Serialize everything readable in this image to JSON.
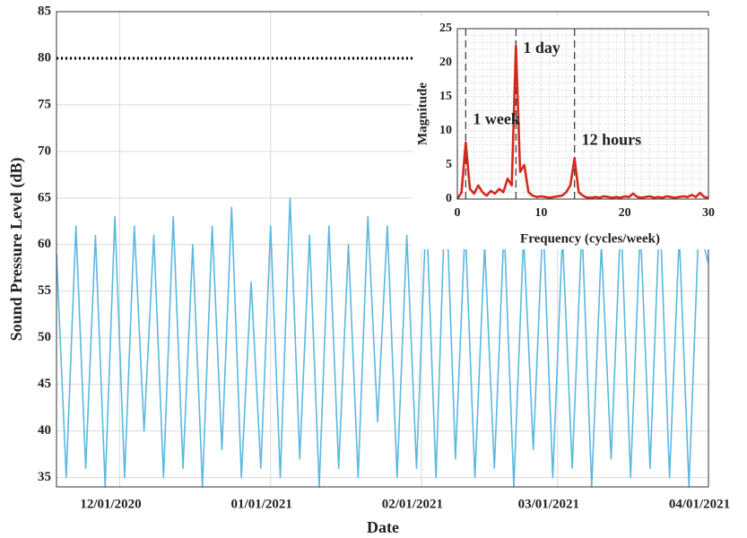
{
  "chart_data": [
    {
      "type": "line",
      "xlabel": "Date",
      "ylabel": "Sound Pressure Level (dB)",
      "x": [
        "2020-11-18",
        "2020-11-20",
        "2020-11-22",
        "2020-11-24",
        "2020-11-26",
        "2020-11-28",
        "2020-11-30",
        "2020-12-02",
        "2020-12-04",
        "2020-12-06",
        "2020-12-08",
        "2020-12-10",
        "2020-12-12",
        "2020-12-14",
        "2020-12-16",
        "2020-12-18",
        "2020-12-20",
        "2020-12-22",
        "2020-12-24",
        "2020-12-26",
        "2020-12-28",
        "2020-12-30",
        "2021-01-01",
        "2021-01-03",
        "2021-01-05",
        "2021-01-07",
        "2021-01-09",
        "2021-01-11",
        "2021-01-13",
        "2021-01-15",
        "2021-01-17",
        "2021-01-19",
        "2021-01-21",
        "2021-01-23",
        "2021-01-25",
        "2021-01-27",
        "2021-01-29",
        "2021-01-31",
        "2021-02-02",
        "2021-02-04",
        "2021-02-06",
        "2021-02-08",
        "2021-02-10",
        "2021-02-12",
        "2021-02-14",
        "2021-02-16",
        "2021-02-18",
        "2021-02-20",
        "2021-02-22",
        "2021-02-24",
        "2021-02-26",
        "2021-02-28",
        "2021-03-02",
        "2021-03-04",
        "2021-03-06",
        "2021-03-08",
        "2021-03-10",
        "2021-03-12",
        "2021-03-14",
        "2021-03-16",
        "2021-03-18",
        "2021-03-20",
        "2021-03-22",
        "2021-03-24",
        "2021-03-26",
        "2021-03-28",
        "2021-03-30",
        "2021-04-01"
      ],
      "series": [
        {
          "color": "#5bb8e0",
          "values": [
            59,
            35,
            62,
            36,
            61,
            34,
            63,
            35,
            62,
            40,
            61,
            35,
            63,
            36,
            60,
            34,
            62,
            38,
            64,
            35,
            56,
            36,
            62,
            35,
            65,
            37,
            61,
            34,
            62,
            36,
            60,
            35,
            63,
            41,
            62,
            35,
            61,
            36,
            64,
            35,
            67,
            37,
            62,
            35,
            60,
            36,
            62,
            34,
            61,
            38,
            63,
            35,
            61,
            36,
            62,
            34,
            60,
            37,
            63,
            35,
            62,
            36,
            64,
            35,
            61,
            34,
            62,
            58
          ]
        }
      ],
      "hline": 80,
      "xlim": [
        "2020-11-18",
        "2021-04-01"
      ],
      "xticks": [
        {
          "value": "2020-12-01",
          "label": "12/01/2020"
        },
        {
          "value": "2021-01-01",
          "label": "01/01/2021"
        },
        {
          "value": "2021-02-01",
          "label": "02/01/2021"
        },
        {
          "value": "2021-03-01",
          "label": "03/01/2021"
        },
        {
          "value": "2021-04-01",
          "label": "04/01/2021"
        }
      ],
      "ylim": [
        34,
        85
      ],
      "yticks": [
        35,
        40,
        45,
        50,
        55,
        60,
        65,
        70,
        75,
        80,
        85
      ],
      "grid": true
    },
    {
      "type": "line",
      "xlabel": "Frequency (cycles/week)",
      "ylabel": "Magnitude",
      "x": [
        0,
        0.5,
        1,
        1.5,
        2,
        2.5,
        3,
        3.5,
        4,
        4.5,
        5,
        5.5,
        6,
        6.5,
        7,
        7.5,
        8,
        8.5,
        9,
        9.5,
        10,
        10.5,
        11,
        11.5,
        12,
        12.5,
        13,
        13.5,
        14,
        14.5,
        15,
        15.5,
        16,
        16.5,
        17,
        17.5,
        18,
        18.5,
        19,
        19.5,
        20,
        20.5,
        21,
        21.5,
        22,
        22.5,
        23,
        23.5,
        24,
        24.5,
        25,
        25.5,
        26,
        26.5,
        27,
        27.5,
        28,
        28.5,
        29,
        29.5,
        30
      ],
      "series": [
        {
          "color": "#d42a1e",
          "values": [
            0,
            1,
            8.3,
            1.5,
            0.8,
            2,
            1,
            0.5,
            1.2,
            0.8,
            1.5,
            1,
            3,
            2,
            22.5,
            4,
            5,
            1,
            0.5,
            0.3,
            0.4,
            0.3,
            0.2,
            0.3,
            0.4,
            0.5,
            1,
            2,
            6,
            1,
            0.5,
            0.2,
            0.2,
            0.3,
            0.2,
            0.4,
            0.3,
            0.2,
            0.3,
            0.2,
            0.4,
            0.3,
            0.8,
            0.3,
            0.2,
            0.3,
            0.4,
            0.2,
            0.3,
            0.2,
            0.4,
            0.3,
            0.2,
            0.3,
            0.4,
            0.3,
            0.6,
            0.3,
            0.9,
            0.3,
            0.2
          ]
        }
      ],
      "vlines": [
        1,
        7,
        14
      ],
      "annotations": [
        "1 week",
        "1 day",
        "12 hours"
      ],
      "xlim": [
        0,
        30
      ],
      "xticks": [
        0,
        10,
        20,
        30
      ],
      "ylim": [
        0,
        25
      ],
      "yticks": [
        0,
        5,
        10,
        15,
        20,
        25
      ],
      "grid": true
    }
  ]
}
